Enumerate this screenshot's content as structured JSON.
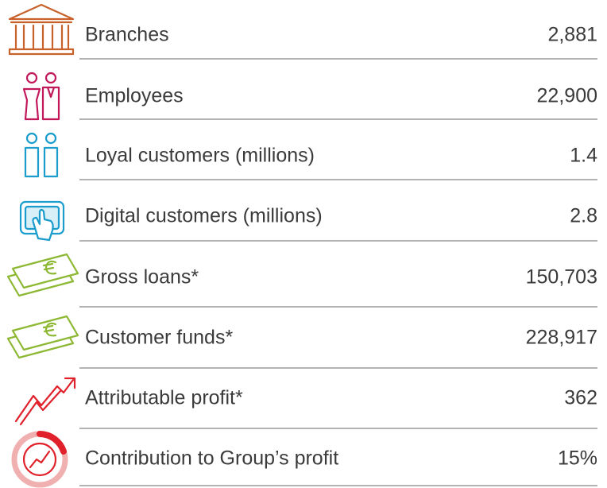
{
  "rows": [
    {
      "label": "Branches",
      "value": "2,881"
    },
    {
      "label": "Employees",
      "value": "22,900"
    },
    {
      "label": "Loyal customers (millions)",
      "value": "1.4"
    },
    {
      "label": "Digital customers (millions)",
      "value": "2.8"
    },
    {
      "label": "Gross loans*",
      "value": "150,703"
    },
    {
      "label": "Customer funds*",
      "value": "228,917"
    },
    {
      "label": "Attributable profit*",
      "value": "362"
    },
    {
      "label": "Contribution to Group’s profit",
      "value": "15%"
    }
  ]
}
